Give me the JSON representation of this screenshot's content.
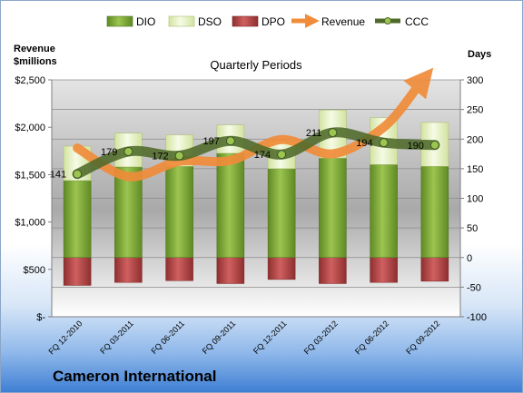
{
  "company": "Cameron International",
  "chart_data": {
    "type": "bar",
    "subtitle": "Quarterly Periods",
    "left_axis_label_line1": "Revenue",
    "left_axis_label_line2": "$millions",
    "right_axis_label": "Days",
    "left_ylim": [
      0,
      2500
    ],
    "right_ylim": [
      -100,
      300
    ],
    "left_ticks": [
      "$-",
      "$500",
      "$1,000",
      "$1,500",
      "$2,000",
      "$2,500"
    ],
    "right_ticks": [
      "-100",
      "-50",
      "0",
      "50",
      "100",
      "150",
      "200",
      "250",
      "300"
    ],
    "categories": [
      "FQ 12-2010",
      "FQ 03-2011",
      "FQ 06-2011",
      "FQ 09-2011",
      "FQ 12-2011",
      "FQ 03-2012",
      "FQ 06-2012",
      "FQ 09-2012"
    ],
    "legend": [
      "DIO",
      "DSO",
      "DPO",
      "Revenue",
      "CCC"
    ],
    "legend_position": "top",
    "grid": true,
    "series": [
      {
        "name": "DIO",
        "axis": "right",
        "color": "#7aa537",
        "values": [
          130,
          153,
          154,
          176,
          150,
          168,
          157,
          154
        ]
      },
      {
        "name": "DSO",
        "axis": "right",
        "color": "#eaf3c8",
        "values": [
          58,
          57,
          53,
          48,
          47,
          81,
          79,
          74
        ]
      },
      {
        "name": "DPO",
        "axis": "right",
        "color": "#b84747",
        "values": [
          -47,
          -42,
          -39,
          -44,
          -37,
          -44,
          -42,
          -40
        ]
      },
      {
        "name": "Revenue",
        "axis": "left",
        "color": "#f08c3a",
        "values": [
          1780,
          1480,
          1640,
          1650,
          1870,
          1720,
          2000,
          2440
        ]
      },
      {
        "name": "CCC",
        "axis": "right",
        "color": "#4f6a2a",
        "values": [
          141,
          179,
          172,
          197,
          174,
          211,
          194,
          190
        ]
      }
    ],
    "ccc_labels": [
      "141",
      "179",
      "172",
      "197",
      "174",
      "211",
      "194",
      "190"
    ]
  }
}
